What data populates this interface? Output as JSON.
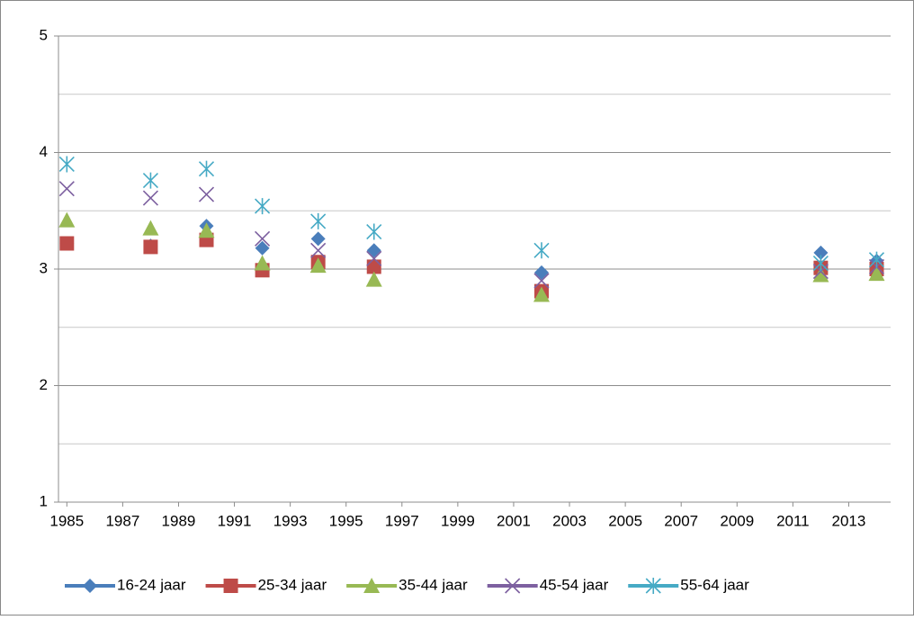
{
  "chart_data": {
    "type": "scatter",
    "x": [
      1985,
      1988,
      1990,
      1992,
      1994,
      1996,
      2002,
      2012,
      2014
    ],
    "xlim": [
      1984.7,
      2014.5
    ],
    "xticks": [
      1985,
      1987,
      1989,
      1991,
      1993,
      1995,
      1997,
      1999,
      2001,
      2003,
      2005,
      2007,
      2009,
      2011,
      2013
    ],
    "ylim": [
      1,
      5
    ],
    "yticks": [
      1,
      2,
      3,
      4,
      5
    ],
    "minor_yticks": [
      1.5,
      2.5,
      3.5,
      4.5
    ],
    "grid": true,
    "legend": "bottom",
    "series": [
      {
        "name": "16-24 jaar",
        "color": "#4a7ebb",
        "marker": "diamond",
        "values": [
          3.22,
          3.2,
          3.37,
          3.18,
          3.26,
          3.16,
          2.97,
          3.14,
          3.07
        ]
      },
      {
        "name": "25-34 jaar",
        "color": "#be4b48",
        "marker": "square",
        "values": [
          3.22,
          3.19,
          3.25,
          2.99,
          3.06,
          3.02,
          2.81,
          3.01,
          3.0
        ]
      },
      {
        "name": "35-44 jaar",
        "color": "#98b954",
        "marker": "triangle",
        "values": [
          3.42,
          3.35,
          3.33,
          3.05,
          3.03,
          2.91,
          2.78,
          2.95,
          2.96
        ]
      },
      {
        "name": "45-54 jaar",
        "color": "#7d60a0",
        "marker": "x",
        "values": [
          3.69,
          3.61,
          3.64,
          3.26,
          3.16,
          3.09,
          2.9,
          2.98,
          3.02
        ]
      },
      {
        "name": "55-64 jaar",
        "color": "#46aac5",
        "marker": "asterisk",
        "values": [
          3.9,
          3.76,
          3.86,
          3.54,
          3.41,
          3.32,
          3.16,
          3.05,
          3.08
        ]
      }
    ]
  }
}
